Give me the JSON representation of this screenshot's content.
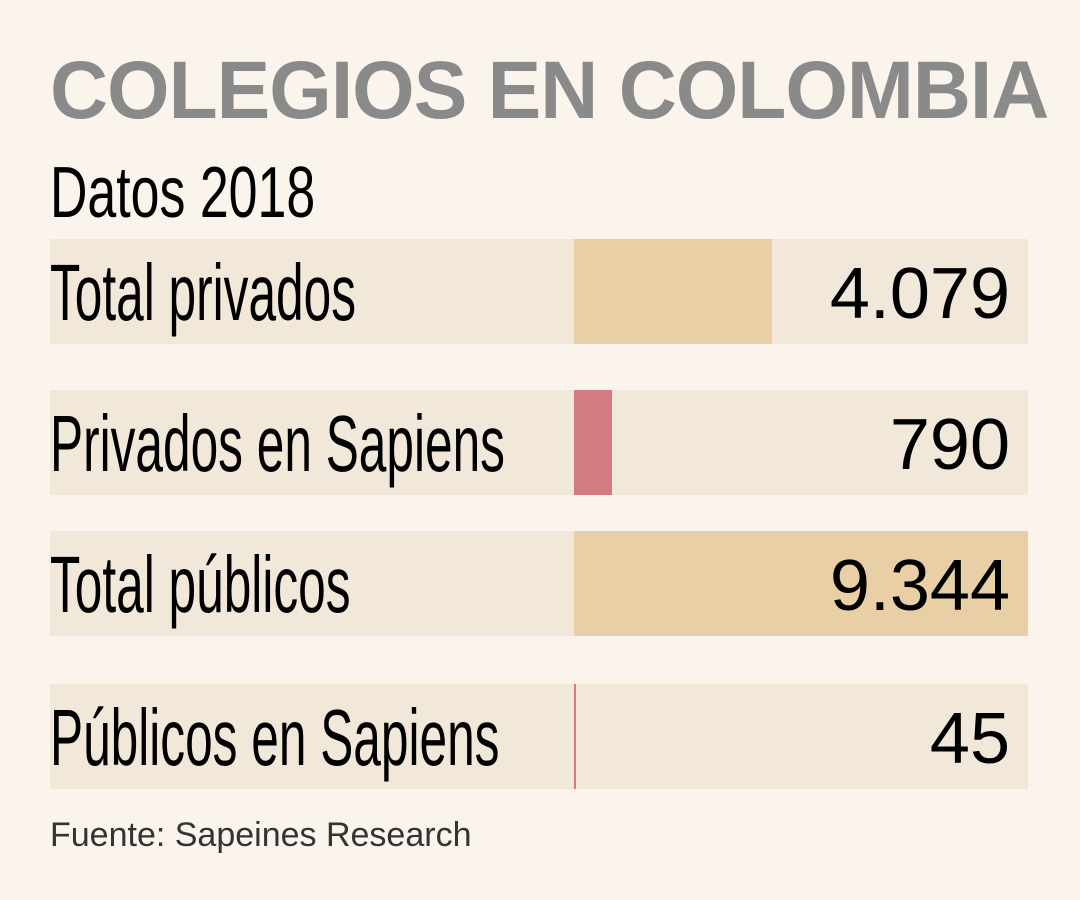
{
  "title": "COLEGIOS EN COLOMBIA",
  "subtitle": "Datos 2018",
  "source": "Fuente: Sapeines Research",
  "chart_data": {
    "type": "bar",
    "orientation": "horizontal",
    "title": "COLEGIOS EN COLOMBIA",
    "subtitle": "Datos 2018",
    "categories": [
      "Total privados",
      "Privados en Sapiens",
      "Total públicos",
      "Públicos en Sapiens"
    ],
    "values": [
      4079,
      790,
      9344,
      45
    ],
    "value_labels": [
      "4.079",
      "790",
      "9.344",
      "45"
    ],
    "bar_colors": [
      "#e8cfa6",
      "#d27b80",
      "#e8cfa6",
      "#d27b80"
    ],
    "row_background": "#f1e8da",
    "xlim": [
      0,
      9344
    ],
    "grid": false
  }
}
